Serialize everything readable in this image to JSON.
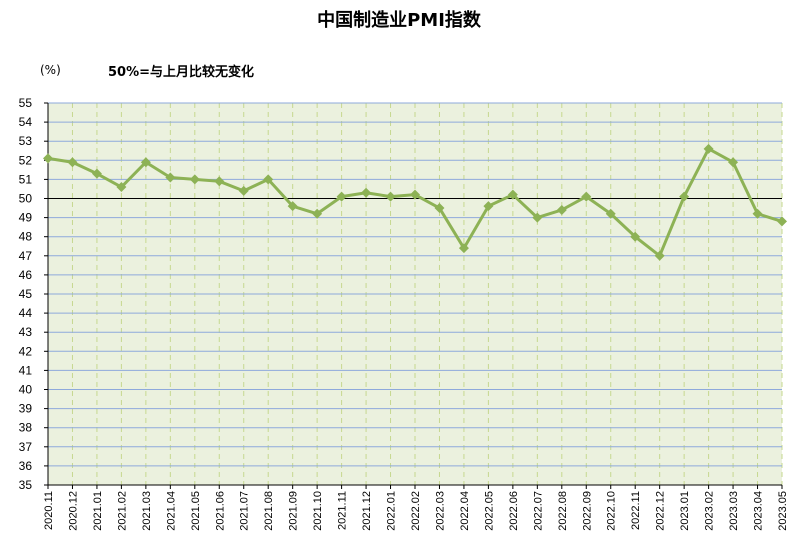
{
  "chart_data": {
    "type": "line",
    "title": "中国制造业PMI指数",
    "unit_label": "(%)",
    "annotation": "50%=与上月比较无变化",
    "xlabel": "",
    "ylabel": "",
    "ylim": [
      35,
      55
    ],
    "ytick_step": 1,
    "reference_line": 50,
    "grid": true,
    "legend": "none",
    "categories": [
      "2020.11",
      "2020.12",
      "2021.01",
      "2021.02",
      "2021.03",
      "2021.04",
      "2021.05",
      "2021.06",
      "2021.07",
      "2021.08",
      "2021.09",
      "2021.10",
      "2021.11",
      "2021.12",
      "2022.01",
      "2022.02",
      "2022.03",
      "2022.04",
      "2022.05",
      "2022.06",
      "2022.07",
      "2022.08",
      "2022.09",
      "2022.10",
      "2022.11",
      "2022.12",
      "2023.01",
      "2023.02",
      "2023.03",
      "2023.04",
      "2023.05"
    ],
    "series": [
      {
        "values": [
          52.1,
          51.9,
          51.3,
          50.6,
          51.9,
          51.1,
          51.0,
          50.9,
          50.4,
          51.0,
          49.6,
          49.2,
          50.1,
          50.3,
          50.1,
          50.2,
          49.5,
          47.4,
          49.6,
          50.2,
          49.0,
          49.4,
          50.1,
          49.2,
          48.0,
          47.0,
          50.1,
          52.6,
          51.9,
          49.2,
          48.8
        ],
        "color": "#8db255"
      }
    ],
    "colors": {
      "plot_background": "#ebf1de",
      "grid_horizontal": "#8ea9db",
      "grid_vertical": "#c6d88f",
      "reference_line": "#000000",
      "series_line": "#8db255"
    }
  }
}
